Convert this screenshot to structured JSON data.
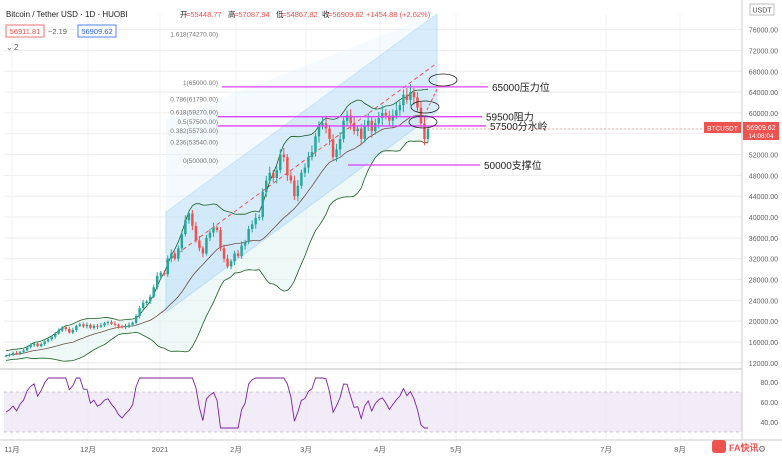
{
  "header": {
    "pair": "Bitcoin / Tether USD · 1D · HUOBI",
    "open_label": "开",
    "open": "=55448.77",
    "high_label": "高",
    "high": "=57087.94",
    "low_label": "低",
    "low": "=54867.82",
    "close_label": "收",
    "close": "=56909.62",
    "change": "+1454.88 (+2.62%)",
    "sell_price": "56911.81",
    "spread": "−2.19",
    "buy_price": "56909.62",
    "indicator_count": "2"
  },
  "price_axis": {
    "currency": "USDT",
    "ticks": [
      "76000.00",
      "72000.00",
      "68000.00",
      "64000.00",
      "60000.00",
      "56000.00",
      "52000.00",
      "48000.00",
      "44000.00",
      "40000.00",
      "36000.00",
      "32000.00",
      "28000.00",
      "24000.00",
      "20000.00",
      "16000.00",
      "12000.00"
    ],
    "symbol_badge": "BTCUSDT",
    "last_price": "56909.62",
    "countdown": "14:08:04"
  },
  "rsi_axis": {
    "ticks": [
      "80.00",
      "60.00",
      "40.00"
    ]
  },
  "time_axis": {
    "labels": [
      "11月",
      "12月",
      "2021",
      "2月",
      "3月",
      "4月",
      "5月",
      "7月",
      "8月"
    ]
  },
  "fib_labels": [
    "1.618(74270.00)",
    "1(65000.00)",
    "0.786(61790.00)",
    "0.618(59270.00)",
    "0.5(57500.00)",
    "0.382(55730.00)",
    "0.236(53540.00)",
    "0(50000.00)"
  ],
  "annotations": [
    "65000压力位",
    "59500阻力",
    "57500分水岭",
    "50000支撑位"
  ],
  "watermark": "FA快讯",
  "colors": {
    "up": "#26a69a",
    "down": "#ef5350",
    "channel": "#90caf9",
    "level_line": "#e040fb",
    "bollinger": "#1b5e20",
    "rsi": "#7b1fa2",
    "last_price_bg": "#ef5350"
  },
  "chart_data": {
    "type": "candlestick",
    "y_range": [
      11000,
      79000
    ],
    "price_series_close": [
      13400,
      13600,
      13900,
      13700,
      14100,
      14400,
      15000,
      15400,
      15700,
      15200,
      15600,
      16100,
      16500,
      17000,
      17600,
      18200,
      18800,
      18500,
      17800,
      18300,
      19100,
      19400,
      19000,
      19300,
      18700,
      19100,
      18900,
      19200,
      19600,
      19800,
      19500,
      19300,
      19000,
      18800,
      19100,
      19300,
      19700,
      21000,
      22500,
      23500,
      23800,
      24700,
      26500,
      28700,
      29300,
      29000,
      32000,
      33000,
      32000,
      34000,
      36700,
      39400,
      40700,
      38300,
      35500,
      34000,
      33000,
      36000,
      37000,
      38000,
      37500,
      34000,
      32000,
      30500,
      31500,
      33000,
      32500,
      34500,
      35200,
      37700,
      38600,
      39800,
      40000,
      44800,
      47000,
      48500,
      47500,
      49000,
      52000,
      51500,
      48000,
      47000,
      44000,
      46000,
      48500,
      49500,
      51500,
      52500,
      55500,
      57500,
      58000,
      57000,
      55000,
      51500,
      53000,
      55000,
      58500,
      59500,
      58000,
      56500,
      57000,
      55000,
      57500,
      58500,
      56500,
      58000,
      59000,
      60000,
      59500,
      58500,
      59500,
      60500,
      61500,
      63500,
      62500,
      64000,
      63000,
      61000,
      58000,
      55000,
      56909
    ]
  }
}
